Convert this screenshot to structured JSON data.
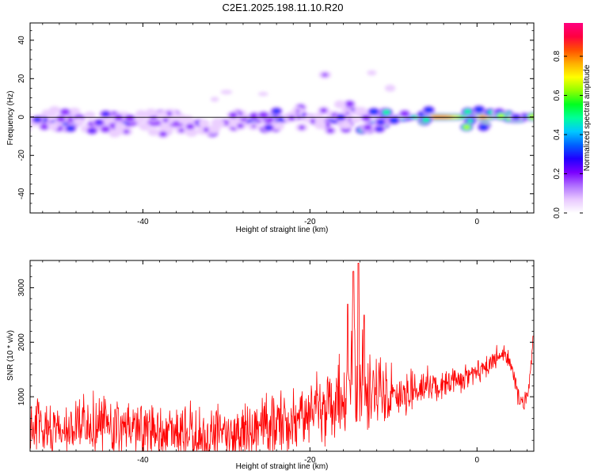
{
  "title": "C2E1.2025.198.11.10.R20",
  "chart_data": [
    {
      "type": "heatmap",
      "xlabel": "Height of straight line (km)",
      "ylabel": "Frequency (Hz)",
      "xlim": [
        -53.5,
        6.8
      ],
      "ylim": [
        -50,
        49
      ],
      "xticks": [
        -40,
        -20,
        0
      ],
      "yticks": [
        -40,
        -20,
        0,
        20,
        40
      ],
      "colorbar": {
        "label": "Normalized spectral amplitude",
        "ticks": [
          0.0,
          0.2,
          0.4,
          0.6,
          0.8
        ],
        "range": [
          0,
          0.97
        ],
        "colors": [
          "#ffffff",
          "#e8c8ff",
          "#b070ff",
          "#7a00ff",
          "#2000ff",
          "#0060ff",
          "#00c8ff",
          "#00ff9a",
          "#00ff20",
          "#90ff00",
          "#ffff00",
          "#ffb000",
          "#ff5000",
          "#ff0040",
          "#ff0080"
        ]
      },
      "blobs": [
        {
          "x": -52.2,
          "y": -1.5,
          "w": 1.2,
          "h": 3.2,
          "a": 0.38
        },
        {
          "x": -50.4,
          "y": -2.5,
          "w": 2.2,
          "h": 3.2,
          "a": 0.3
        },
        {
          "x": -48.4,
          "y": -2.8,
          "w": 1.4,
          "h": 3.0,
          "a": 0.42
        },
        {
          "x": -45.6,
          "y": -4.5,
          "w": 1.3,
          "h": 2.8,
          "a": 0.32
        },
        {
          "x": -44.0,
          "y": -3.3,
          "w": 1.3,
          "h": 2.8,
          "a": 0.36
        },
        {
          "x": -42.0,
          "y": -3.2,
          "w": 2.0,
          "h": 2.8,
          "a": 0.3
        },
        {
          "x": -38.6,
          "y": -3.0,
          "w": 1.4,
          "h": 2.8,
          "a": 0.26
        },
        {
          "x": -35.8,
          "y": -3.6,
          "w": 2.0,
          "h": 2.8,
          "a": 0.24
        },
        {
          "x": -33.2,
          "y": -3.2,
          "w": 1.2,
          "h": 2.6,
          "a": 0.32
        },
        {
          "x": -30.4,
          "y": -3.0,
          "w": 1.5,
          "h": 2.6,
          "a": 0.26
        },
        {
          "x": -27.0,
          "y": -1.8,
          "w": 2.0,
          "h": 2.4,
          "a": 0.34
        },
        {
          "x": -23.8,
          "y": -1.2,
          "w": 2.4,
          "h": 2.4,
          "a": 0.38
        },
        {
          "x": -20.2,
          "y": -0.3,
          "w": 1.3,
          "h": 2.4,
          "a": 0.34
        },
        {
          "x": -17.0,
          "y": -1.8,
          "w": 1.8,
          "h": 2.4,
          "a": 0.36
        },
        {
          "x": -15.0,
          "y": 3.4,
          "w": 1.4,
          "h": 2.4,
          "a": 0.28
        },
        {
          "x": -12.0,
          "y": -1.8,
          "w": 1.8,
          "h": 2.4,
          "a": 0.56
        },
        {
          "x": -9.4,
          "y": -0.7,
          "w": 2.4,
          "h": 2.2,
          "a": 0.56
        },
        {
          "x": -4.5,
          "y": 0.0,
          "w": 5.0,
          "h": 2.0,
          "a": 0.96
        },
        {
          "x": 0.6,
          "y": 0.0,
          "w": 2.6,
          "h": 2.0,
          "a": 0.9
        },
        {
          "x": 4.6,
          "y": -1.0,
          "w": 1.8,
          "h": 2.4,
          "a": 0.85
        },
        {
          "x": -12.6,
          "y": 23.0,
          "w": 0.9,
          "h": 2.2,
          "a": 0.1
        },
        {
          "x": -18.2,
          "y": 22.0,
          "w": 0.9,
          "h": 2.4,
          "a": 0.2
        },
        {
          "x": -10.4,
          "y": 15.0,
          "w": 0.9,
          "h": 2.6,
          "a": 0.12
        },
        {
          "x": -30.0,
          "y": 13.0,
          "w": 1.4,
          "h": 2.4,
          "a": 0.08
        },
        {
          "x": -25.6,
          "y": 12.0,
          "w": 1.2,
          "h": 2.2,
          "a": 0.08
        },
        {
          "x": -31.4,
          "y": 9.2,
          "w": 1.0,
          "h": 2.6,
          "a": 0.08
        },
        {
          "x": -38.8,
          "y": 37.0,
          "w": 0.5,
          "h": 1.4,
          "a": 0.03
        },
        {
          "x": -30.0,
          "y": -21.0,
          "w": 0.5,
          "h": 1.4,
          "a": 0.03
        }
      ]
    },
    {
      "type": "line",
      "xlabel": "Height of straight line (km)",
      "ylabel": "SNR (10 * v/v)",
      "xlim": [
        -53.5,
        6.8
      ],
      "ylim": [
        0,
        3500
      ],
      "xticks": [
        -40,
        -20,
        0
      ],
      "yticks": [
        1000,
        2000,
        3000
      ],
      "series": [
        {
          "color": "#ff0000",
          "envelope_x": [
            -53.5,
            -50,
            -46,
            -40,
            -36,
            -33,
            -30,
            -26,
            -22,
            -19,
            -16,
            -14.8,
            -14.3,
            -13,
            -11,
            -9,
            -7,
            -5,
            -3,
            -1,
            0.5,
            2,
            3,
            4,
            5,
            5.6,
            6.2,
            6.8
          ],
          "envelope_y": [
            450,
            450,
            500,
            450,
            330,
            300,
            320,
            450,
            600,
            800,
            1000,
            1300,
            1450,
            1200,
            1000,
            1050,
            1150,
            1200,
            1250,
            1400,
            1500,
            1650,
            1850,
            1600,
            1000,
            800,
            1200,
            2200
          ],
          "noise_x": [
            -53.5,
            -20,
            -18,
            -15,
            -13,
            -11,
            -9,
            -5,
            0,
            6.8
          ],
          "noise_y": [
            400,
            450,
            600,
            900,
            800,
            500,
            350,
            250,
            160,
            140
          ],
          "spikes": [
            {
              "x": -14.8,
              "y": 3300
            },
            {
              "x": -14.2,
              "y": 3450
            },
            {
              "x": -15.5,
              "y": 2700
            },
            {
              "x": -13.5,
              "y": 2500
            }
          ]
        }
      ]
    }
  ]
}
